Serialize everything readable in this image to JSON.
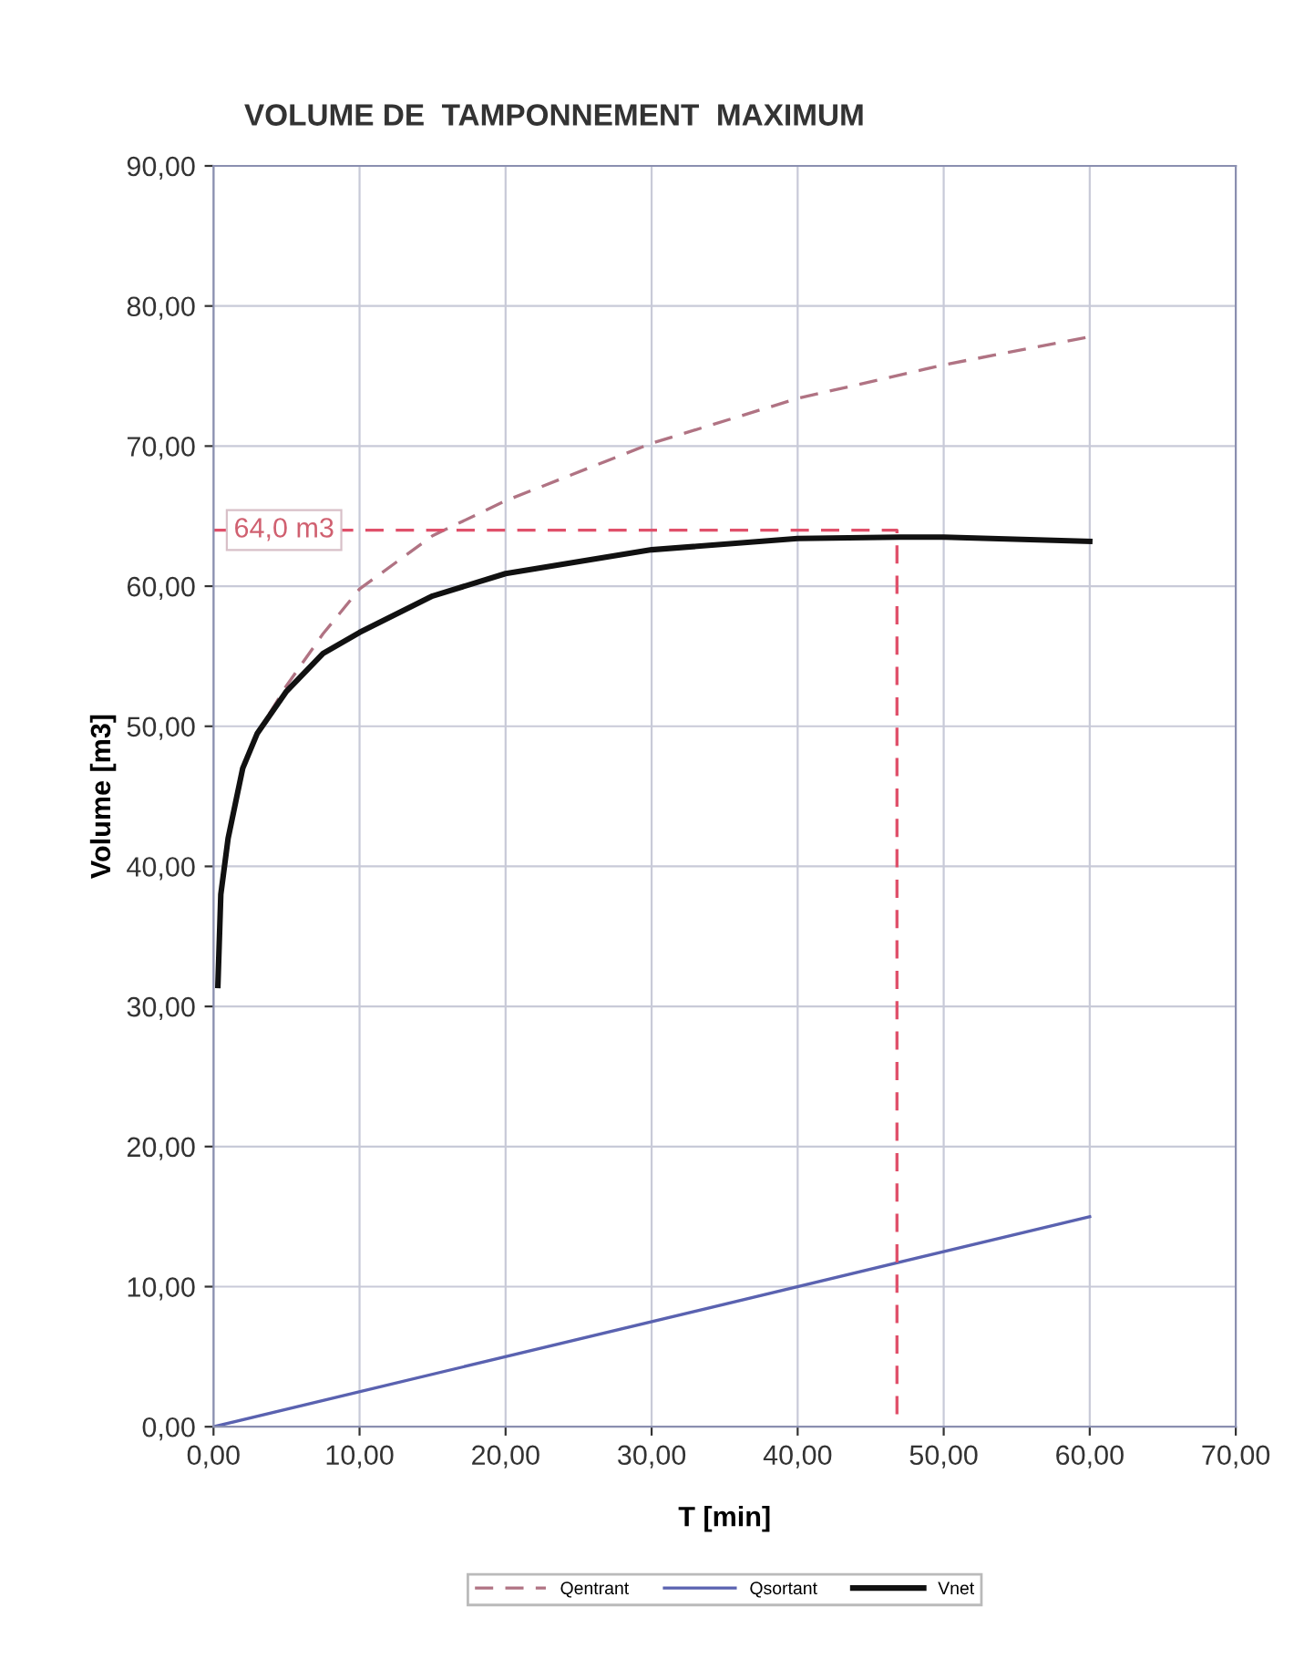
{
  "chart_data": {
    "type": "line",
    "title": "VOLUME DE  TAMPONNEMENT  MAXIMUM",
    "xlabel": "T [min]",
    "ylabel": "Volume [m3]",
    "xlim": [
      0,
      70
    ],
    "ylim": [
      0,
      90
    ],
    "xticks": [
      {
        "value": 0,
        "label": "0,00"
      },
      {
        "value": 10,
        "label": "10,00"
      },
      {
        "value": 20,
        "label": "20,00"
      },
      {
        "value": 30,
        "label": "30,00"
      },
      {
        "value": 40,
        "label": "40,00"
      },
      {
        "value": 50,
        "label": "50,00"
      },
      {
        "value": 60,
        "label": "60,00"
      },
      {
        "value": 70,
        "label": "70,00"
      }
    ],
    "yticks": [
      {
        "value": 0,
        "label": "0,00"
      },
      {
        "value": 10,
        "label": "10,00"
      },
      {
        "value": 20,
        "label": "20,00"
      },
      {
        "value": 30,
        "label": "30,00"
      },
      {
        "value": 40,
        "label": "40,00"
      },
      {
        "value": 50,
        "label": "50,00"
      },
      {
        "value": 60,
        "label": "60,00"
      },
      {
        "value": 70,
        "label": "70,00"
      },
      {
        "value": 80,
        "label": "80,00"
      },
      {
        "value": 90,
        "label": "90,00"
      }
    ],
    "grid": true,
    "legend": "bottom",
    "marker": "none",
    "series": [
      {
        "name": "Qentrant",
        "color": "#b07383",
        "line_style": "dashed",
        "x": [
          2,
          3,
          5,
          7.5,
          10,
          15,
          20,
          30,
          40,
          50,
          60
        ],
        "values": [
          47.0,
          49.5,
          52.9,
          56.6,
          59.8,
          63.6,
          66.1,
          70.2,
          73.4,
          75.8,
          77.8
        ]
      },
      {
        "name": "Qsortant",
        "color": "#5a62b0",
        "line_style": "solid",
        "x": [
          0,
          60
        ],
        "values": [
          0,
          15
        ]
      },
      {
        "name": "Vnet",
        "color": "#111111",
        "line_style": "solid",
        "x": [
          0.3,
          0.5,
          1,
          2,
          3,
          5,
          7.5,
          10,
          15,
          20,
          30,
          40,
          47,
          50,
          60
        ],
        "values": [
          31.5,
          38,
          42,
          47,
          49.5,
          52.5,
          55.2,
          56.7,
          59.3,
          60.9,
          62.6,
          63.4,
          63.5,
          63.5,
          63.2
        ]
      },
      {
        "color": "#e0506a",
        "line_style": "dashed",
        "x": [
          0,
          46.8,
          46.8
        ],
        "values": [
          64,
          64,
          0
        ]
      }
    ],
    "annotations": [
      {
        "text": "64,0 m3",
        "x": 0,
        "y": 64
      }
    ]
  }
}
